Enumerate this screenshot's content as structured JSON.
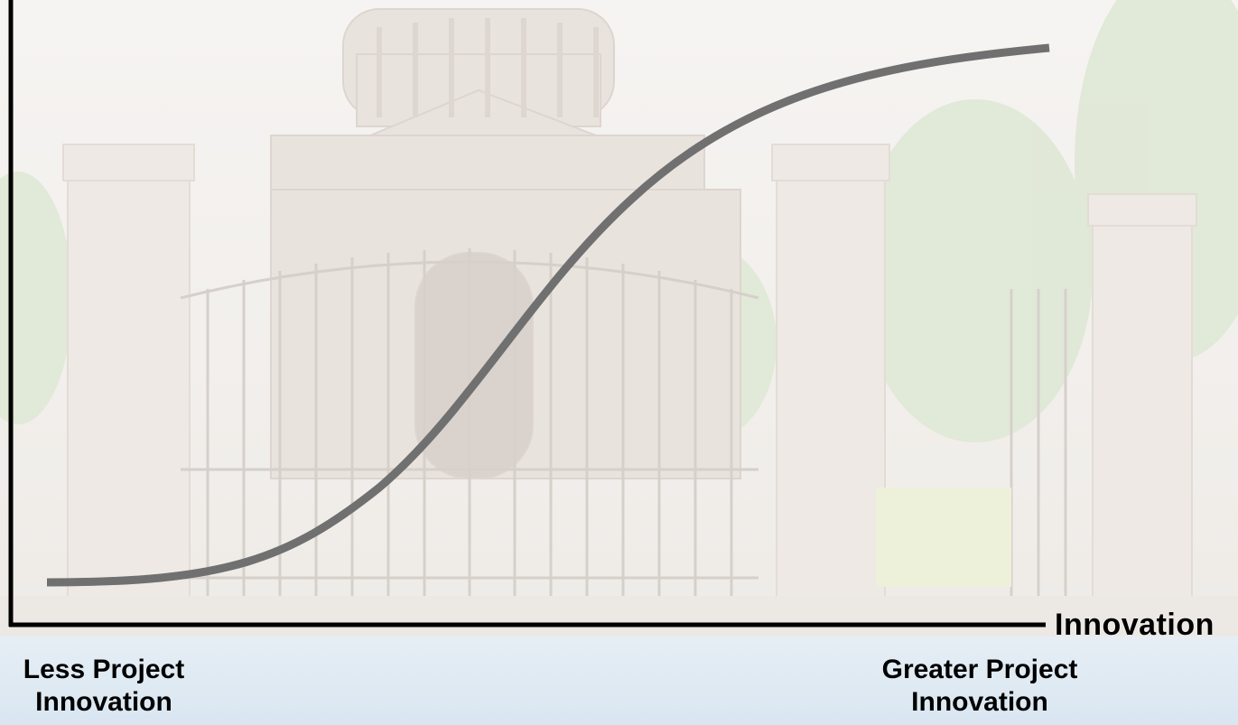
{
  "diagram": {
    "x_axis_label": "Innovation",
    "left_caption": [
      "Less Project",
      "Innovation"
    ],
    "right_caption": [
      "Greater Project",
      "Innovation"
    ],
    "curve": {
      "shape": "s-curve",
      "color": "#707070"
    },
    "axis_color": "#000000",
    "background": "faded photograph of a government building behind an ornate iron gate with stone pillars"
  }
}
